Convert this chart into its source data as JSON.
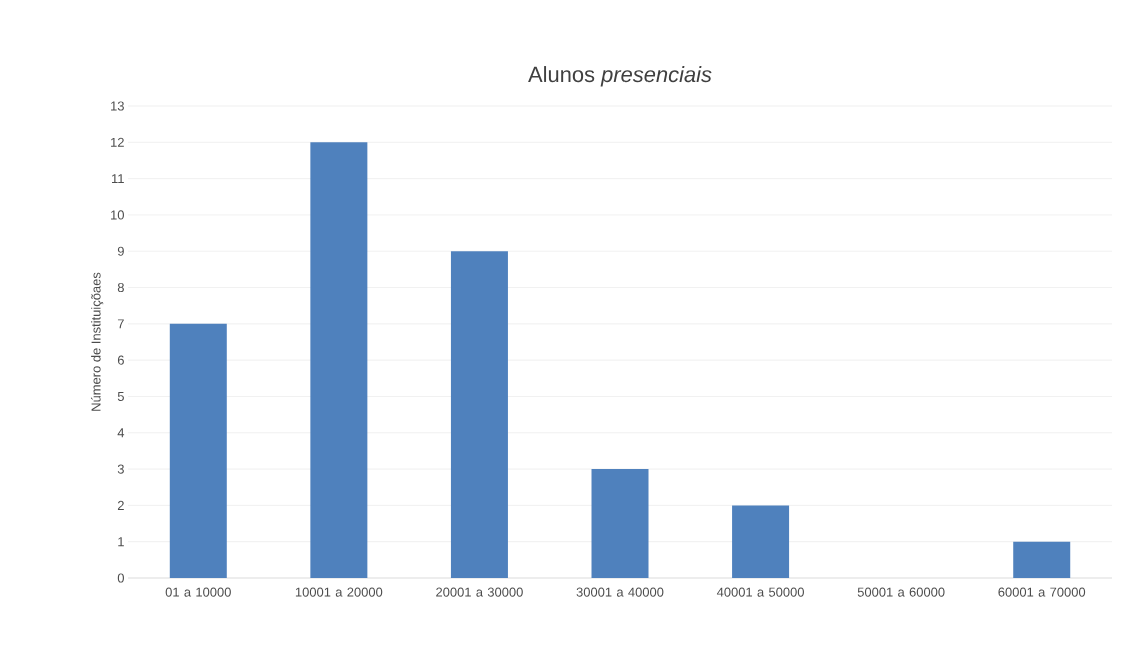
{
  "chart_data": {
    "type": "bar",
    "title": "Alunos *presenciais*",
    "ylabel": "Número de Instituiçõaes",
    "categories": [
      "01 a 10000",
      "10001 a 20000",
      "20001 a 30000",
      "30001 a 40000",
      "40001 a 50000",
      "50001 a 60000",
      "60001 a 70000"
    ],
    "values": [
      7,
      12,
      9,
      3,
      2,
      0,
      1
    ],
    "color": "#4f81bd",
    "ylim": [
      0,
      13
    ],
    "yticks": [
      0,
      1,
      2,
      3,
      4,
      5,
      6,
      7,
      8,
      9,
      10,
      11,
      12,
      13
    ],
    "grid": "y"
  }
}
